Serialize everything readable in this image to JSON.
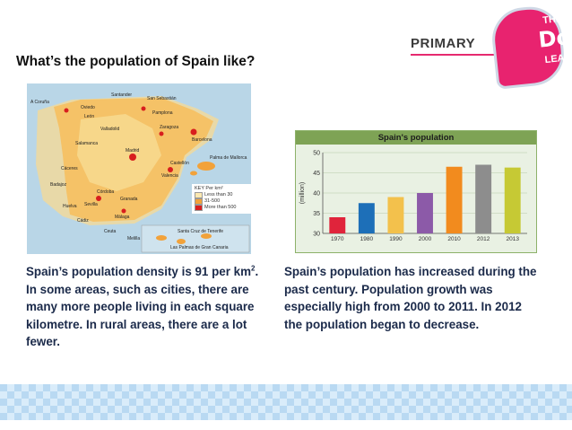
{
  "slide": {
    "title": "What’s the population of Spain like?"
  },
  "brand": {
    "primary": "PRIMARY",
    "badge_line1": "THINK",
    "badge_line2": "Do!",
    "badge_line3": "LEARN",
    "accent_color": "#e8236f"
  },
  "map": {
    "key_title": "KEY  Per km²",
    "key_items": [
      "Less than 30",
      "31-500",
      "More than 500"
    ],
    "key_colors": [
      "#fbe8b0",
      "#f2a23a",
      "#d81e1e"
    ],
    "labels": [
      "A Coruña",
      "Santander",
      "San Sebastián",
      "Oviedo",
      "León",
      "Pamplona",
      "Valladolid",
      "Zaragoza",
      "Salamanca",
      "Barcelona",
      "Madrid",
      "Castellón",
      "Palma de Mallorca",
      "Cáceres",
      "Valencia",
      "Badajoz",
      "Córdoba",
      "Sevilla",
      "Granada",
      "Málaga",
      "Huelva",
      "Cádiz",
      "Ceuta",
      "Melilla",
      "Santa Cruz de Tenerife",
      "Las Palmas de Gran Canaria"
    ]
  },
  "chart_data": {
    "type": "bar",
    "title": "Spain's population",
    "ylabel": "(million)",
    "categories": [
      "1970",
      "1980",
      "1990",
      "2000",
      "2010",
      "2012",
      "2013"
    ],
    "values": [
      34,
      37.5,
      39,
      40,
      46.5,
      47,
      46.3
    ],
    "ylim": [
      30,
      50
    ],
    "yticks": [
      30,
      35,
      40,
      45,
      50
    ],
    "colors": [
      "#e0243b",
      "#1d6fb8",
      "#f3c14c",
      "#8c5aa8",
      "#f28b1e",
      "#8d8d8d",
      "#c6c934"
    ]
  },
  "text": {
    "left_p1": "Spain’s population density is 91 per km",
    "left_sup": "2",
    "left_p2": ". In some areas, such as cities, there are many more people living in each square kilometre. In rural areas, there are a lot fewer.",
    "right": "Spain’s population has increased during the past century. Population growth was especially high from 2000 to 2011. In 2012 the population began to decrease."
  }
}
